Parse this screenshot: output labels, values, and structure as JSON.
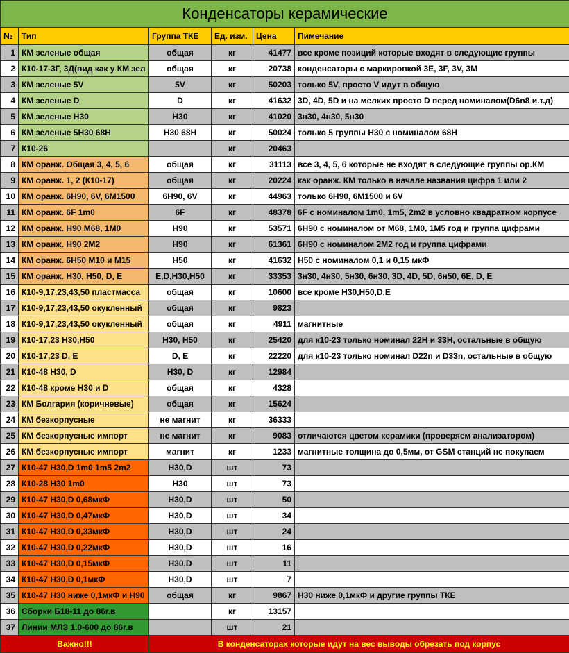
{
  "title": "Конденсаторы керамические",
  "title_bg": "#7db74a",
  "header": {
    "num": "№",
    "type": "Тип",
    "group": "Группа ТКЕ",
    "unit": "Ед. изм.",
    "price": "Цена",
    "note": "Пимечание",
    "bg": "#ffcc00"
  },
  "gray_bg": "#bfbfbf",
  "white_bg": "#ffffff",
  "rows": [
    {
      "n": "1",
      "type": "КМ зеленые общая",
      "group": "общая",
      "unit": "кг",
      "price": "41477",
      "note": "все кроме позиций которые входят в следующие группы",
      "c": "#b5d28a"
    },
    {
      "n": "2",
      "type": "К10-17-3Г, 3Д(вид как у КМ зел",
      "group": "общая",
      "unit": "кг",
      "price": "20738",
      "note": "конденсаторы с маркировкой 3E, 3F, 3V, 3M",
      "c": "#b5d28a"
    },
    {
      "n": "3",
      "type": "КМ зеленые 5V",
      "group": "5V",
      "unit": "кг",
      "price": "50203",
      "note": "только 5V, просто V идут в общую",
      "c": "#b5d28a"
    },
    {
      "n": "4",
      "type": "КМ зеленые D",
      "group": "D",
      "unit": "кг",
      "price": "41632",
      "note": "3D, 4D, 5D и на мелких просто D перед номиналом(D6n8 и.т.д)",
      "c": "#b5d28a"
    },
    {
      "n": "5",
      "type": "КМ зеленые Н30",
      "group": "Н30",
      "unit": "кг",
      "price": "41020",
      "note": "3н30, 4н30, 5н30",
      "c": "#b5d28a"
    },
    {
      "n": "6",
      "type": "КМ зеленые 5Н30 68Н",
      "group": "Н30  68Н",
      "unit": "кг",
      "price": "50024",
      "note": "только 5 группы Н30 с номиналом 68Н",
      "c": "#b5d28a"
    },
    {
      "n": "7",
      "type": "К10-26",
      "group": "",
      "unit": "кг",
      "price": "20463",
      "note": "",
      "c": "#b5d28a"
    },
    {
      "n": "8",
      "type": "КМ оранж. Общая 3, 4, 5, 6",
      "group": "общая",
      "unit": "кг",
      "price": "31113",
      "note": "все 3, 4, 5, 6 которые не входят в следующие группы ор.КМ",
      "c": "#f4b76e"
    },
    {
      "n": "9",
      "type": "КМ оранж. 1, 2 (К10-17)",
      "group": "общая",
      "unit": "кг",
      "price": "20224",
      "note": "как оранж. КМ только в начале названия цифра 1 или 2",
      "c": "#f4b76e"
    },
    {
      "n": "10",
      "type": "КМ оранж. 6Н90, 6V, 6М1500",
      "group": "6Н90, 6V",
      "unit": "кг",
      "price": "44963",
      "note": "только 6Н90, 6М1500 и 6V",
      "c": "#f4b76e"
    },
    {
      "n": "11",
      "type": "КМ оранж. 6F 1m0",
      "group": "6F",
      "unit": "кг",
      "price": "48378",
      "note": "6F с номиналом 1m0, 1m5, 2m2 в условно квадратном корпусе",
      "c": "#f4b76e"
    },
    {
      "n": "12",
      "type": "КМ оранж. Н90  М68, 1М0",
      "group": "Н90",
      "unit": "кг",
      "price": "53571",
      "note": "6Н90 с номиналом от М68, 1М0, 1М5 год и группа цифрами",
      "c": "#f4b76e"
    },
    {
      "n": "13",
      "type": "КМ оранж. Н90 2М2",
      "group": "Н90",
      "unit": "кг",
      "price": "61361",
      "note": "6Н90 с номиналом 2М2 год и группа цифрами",
      "c": "#f4b76e"
    },
    {
      "n": "14",
      "type": "КМ оранж. 6Н50 М10 и М15",
      "group": "Н50",
      "unit": "кг",
      "price": "41632",
      "note": "Н50 с номиналом 0,1 и 0,15 мкФ",
      "c": "#f4b76e"
    },
    {
      "n": "15",
      "type": "КМ оранж. Н30, Н50, D, E",
      "group": "E,D,H30,H50",
      "unit": "кг",
      "price": "33353",
      "note": "3н30, 4н30, 5н30, 6н30, 3D, 4D, 5D, 6н50, 6E, D, E",
      "c": "#f4b76e"
    },
    {
      "n": "16",
      "type": "К10-9,17,23,43,50 пластмасса",
      "group": "общая",
      "unit": "кг",
      "price": "10600",
      "note": "все кроме Н30,Н50,D,E",
      "c": "#ffe08a"
    },
    {
      "n": "17",
      "type": "К10-9,17,23,43,50 окукленный",
      "group": "общая",
      "unit": "кг",
      "price": "9823",
      "note": "",
      "c": "#ffe08a"
    },
    {
      "n": "18",
      "type": "К10-9,17,23,43,50 окукленный",
      "group": "общая",
      "unit": "кг",
      "price": "4911",
      "note": "магнитные",
      "c": "#ffe08a"
    },
    {
      "n": "19",
      "type": "К10-17,23  Н30,Н50",
      "group": "Н30, Н50",
      "unit": "кг",
      "price": "25420",
      "note": "для к10-23 только номинал 22Н и 33Н, остальные в общую",
      "c": "#ffe08a"
    },
    {
      "n": "20",
      "type": "К10-17,23  D, E",
      "group": "D, E",
      "unit": "кг",
      "price": "22220",
      "note": "для к10-23 только номинал D22n и D33n, остальные в общую",
      "c": "#ffe08a"
    },
    {
      "n": "21",
      "type": "К10-48  Н30, D",
      "group": "Н30, D",
      "unit": "кг",
      "price": "12984",
      "note": "",
      "c": "#ffe08a"
    },
    {
      "n": "22",
      "type": "К10-48 кроме Н30 и D",
      "group": "общая",
      "unit": "кг",
      "price": "4328",
      "note": "",
      "c": "#ffe08a"
    },
    {
      "n": "23",
      "type": "КМ Болгария (коричневые)",
      "group": "общая",
      "unit": "кг",
      "price": "15624",
      "note": "",
      "c": "#ffe08a"
    },
    {
      "n": "24",
      "type": "КМ безкорпусные",
      "group": "не магнит",
      "unit": "кг",
      "price": "36333",
      "note": "",
      "c": "#ffe08a"
    },
    {
      "n": "25",
      "type": "КМ безкорпусные импорт",
      "group": "не магнит",
      "unit": "кг",
      "price": "9083",
      "note": "отличаются цветом керамики (проверяем анализатором)",
      "c": "#ffe08a"
    },
    {
      "n": "26",
      "type": "КМ безкорпусные импорт",
      "group": "магнит",
      "unit": "кг",
      "price": "1233",
      "note": "магнитные толщина до 0,5мм, от GSM станций не покупаем",
      "c": "#ffe08a"
    },
    {
      "n": "27",
      "type": "К10-47 Н30,D 1m0  1m5  2m2",
      "group": "Н30,D",
      "unit": "шт",
      "price": "73",
      "note": "",
      "c": "#ff6600"
    },
    {
      "n": "28",
      "type": "К10-28 Н30 1m0",
      "group": "Н30",
      "unit": "шт",
      "price": "73",
      "note": "",
      "c": "#ff6600"
    },
    {
      "n": "29",
      "type": "К10-47 Н30,D  0,68мкФ",
      "group": "Н30,D",
      "unit": "шт",
      "price": "50",
      "note": "",
      "c": "#ff6600"
    },
    {
      "n": "30",
      "type": "К10-47 Н30,D  0,47мкФ",
      "group": "Н30,D",
      "unit": "шт",
      "price": "34",
      "note": "",
      "c": "#ff6600"
    },
    {
      "n": "31",
      "type": "К10-47 Н30,D  0,33мкФ",
      "group": "Н30,D",
      "unit": "шт",
      "price": "24",
      "note": "",
      "c": "#ff6600"
    },
    {
      "n": "32",
      "type": "К10-47 Н30,D  0,22мкФ",
      "group": "Н30,D",
      "unit": "шт",
      "price": "16",
      "note": "",
      "c": "#ff6600"
    },
    {
      "n": "33",
      "type": "К10-47 Н30,D  0,15мкФ",
      "group": "Н30,D",
      "unit": "шт",
      "price": "11",
      "note": "",
      "c": "#ff6600"
    },
    {
      "n": "34",
      "type": "К10-47 Н30,D  0,1мкФ",
      "group": "Н30,D",
      "unit": "шт",
      "price": "7",
      "note": "",
      "c": "#ff6600"
    },
    {
      "n": "35",
      "type": "К10-47 Н30 ниже 0,1мкФ и Н90",
      "group": "общая",
      "unit": "кг",
      "price": "9867",
      "note": "Н30 ниже 0,1мкФ и другие группы ТКЕ",
      "c": "#ff6600"
    },
    {
      "n": "36",
      "type": "Сборки Б18-11 до 86г.в",
      "group": "",
      "unit": "кг",
      "price": "13157",
      "note": "",
      "c": "#339933"
    },
    {
      "n": "37",
      "type": "Линии МЛЗ 1.0-600 до 86г.в",
      "group": "",
      "unit": "шт",
      "price": "21",
      "note": "",
      "c": "#339933"
    }
  ],
  "footer": {
    "label": "Важно!!!",
    "note": "В конденсаторах которые идут на вес выводы обрезать под корпус",
    "bg": "#cc0000",
    "fg": "#ffff00"
  }
}
